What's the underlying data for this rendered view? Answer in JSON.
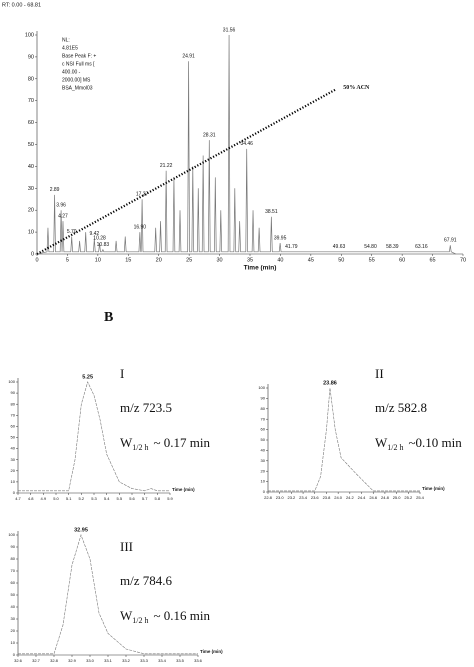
{
  "panel_label": "B",
  "chart_data": [
    {
      "type": "line",
      "range_text": "RT: 0.00 - 68.81",
      "info": [
        "NL:",
        "4.81E5",
        "Base Peak F: +",
        "c NSI Full ms [",
        "400.00 -",
        "2000.00]  MS",
        "BSA_Mmol03"
      ],
      "xlabel": "Time (min)",
      "xlim": [
        0,
        70
      ],
      "xticks": [
        0,
        5,
        10,
        15,
        20,
        25,
        30,
        35,
        40,
        45,
        50,
        55,
        60,
        65,
        70
      ],
      "ylim": [
        0,
        100
      ],
      "yticks": [
        0,
        10,
        20,
        30,
        40,
        50,
        60,
        70,
        80,
        90,
        100
      ],
      "color": "#777777",
      "x": [
        0,
        1.65,
        1.8,
        1.95,
        2.74,
        2.89,
        3.04,
        3.81,
        3.96,
        4.11,
        4.12,
        4.27,
        4.42,
        5.55,
        5.7,
        5.85,
        6.85,
        7,
        7.15,
        7.85,
        8,
        8.15,
        9.27,
        9.42,
        9.57,
        10.13,
        10.28,
        10.43,
        10.68,
        10.83,
        10.98,
        12.85,
        13,
        13.15,
        14.35,
        14.5,
        14.65,
        16.75,
        16.9,
        17.05,
        17.12,
        17.27,
        17.42,
        19.35,
        19.5,
        19.65,
        20.15,
        20.3,
        20.45,
        21.07,
        21.22,
        21.37,
        22.35,
        22.5,
        22.65,
        23.35,
        23.5,
        23.65,
        24.76,
        24.91,
        25.06,
        25.45,
        25.6,
        25.75,
        26.35,
        26.5,
        26.65,
        27.15,
        27.3,
        27.45,
        28.16,
        28.31,
        28.46,
        29.15,
        29.3,
        29.45,
        30.05,
        30.2,
        30.35,
        31.41,
        31.56,
        31.71,
        32.35,
        32.5,
        32.65,
        33.15,
        33.3,
        33.45,
        34.31,
        34.46,
        34.61,
        35.35,
        35.5,
        35.65,
        36.35,
        36.5,
        36.65,
        38.36,
        38.51,
        38.66,
        39.8,
        39.95,
        40.1,
        41.64,
        41.79,
        41.94,
        49.48,
        49.63,
        49.78,
        54.65,
        54.8,
        54.95,
        58.24,
        58.39,
        58.54,
        63.01,
        63.16,
        63.31,
        67.76,
        67.91,
        68.06,
        68.81
      ],
      "values": [
        0,
        1,
        12,
        1,
        1,
        27,
        1,
        1,
        20,
        1,
        1,
        15,
        1,
        1,
        8,
        1,
        1,
        6,
        1,
        1,
        10,
        1,
        1,
        7,
        1,
        1,
        5,
        1,
        1,
        2,
        1,
        1,
        6,
        1,
        1,
        8,
        1,
        1,
        10,
        1,
        1,
        25,
        1,
        1,
        12,
        1,
        1,
        15,
        1,
        1,
        38,
        1,
        1,
        35,
        1,
        1,
        20,
        1,
        1,
        88,
        1,
        1,
        40,
        1,
        1,
        30,
        1,
        1,
        45,
        1,
        1,
        52,
        1,
        1,
        35,
        1,
        1,
        20,
        1,
        1,
        100,
        1,
        1,
        30,
        1,
        1,
        15,
        1,
        1,
        48,
        1,
        1,
        20,
        1,
        1,
        12,
        1,
        1,
        17,
        1,
        1,
        5,
        1,
        1,
        1,
        1,
        1,
        1,
        1,
        1,
        1,
        1,
        1,
        1,
        1,
        1,
        1,
        1,
        1,
        4,
        1,
        0
      ],
      "peak_labels": [
        {
          "label": "2.89",
          "x": 2.89,
          "y": 27
        },
        {
          "label": "3.96",
          "x": 3.96,
          "y": 20
        },
        {
          "label": "4.27",
          "x": 4.27,
          "y": 15
        },
        {
          "label": "5.70",
          "x": 5.7,
          "y": 8
        },
        {
          "label": "9.42",
          "x": 9.42,
          "y": 7
        },
        {
          "label": "10.28",
          "x": 10.28,
          "y": 5
        },
        {
          "label": "10.83",
          "x": 10.83,
          "y": 2
        },
        {
          "label": "16.90",
          "x": 16.9,
          "y": 10
        },
        {
          "label": "17.27",
          "x": 17.27,
          "y": 25
        },
        {
          "label": "21.22",
          "x": 21.22,
          "y": 38
        },
        {
          "label": "24.91",
          "x": 24.91,
          "y": 88
        },
        {
          "label": "28.31",
          "x": 28.31,
          "y": 52
        },
        {
          "label": "31.56",
          "x": 31.56,
          "y": 100
        },
        {
          "label": "34.46",
          "x": 34.46,
          "y": 48
        },
        {
          "label": "38.51",
          "x": 38.51,
          "y": 17
        },
        {
          "label": "39.95",
          "x": 39.95,
          "y": 5
        },
        {
          "label": "41.79",
          "x": 41.79,
          "y": 1
        },
        {
          "label": "49.63",
          "x": 49.63,
          "y": 1
        },
        {
          "label": "54.80",
          "x": 54.8,
          "y": 1
        },
        {
          "label": "58.39",
          "x": 58.39,
          "y": 1
        },
        {
          "label": "63.16",
          "x": 63.16,
          "y": 1
        },
        {
          "label": "67.91",
          "x": 67.91,
          "y": 4
        }
      ],
      "gradient": {
        "label": "50%   ACN",
        "x": [
          0,
          49
        ],
        "values": [
          0,
          75
        ]
      }
    },
    {
      "type": "line",
      "title": "I",
      "mz": "m/z 723.5",
      "width_symbol": "W",
      "width_sub": "1/2 h",
      "width_value": "~ 0.17 min",
      "xlabel": "Time (min)",
      "color": "#777777",
      "xlim": [
        4.7,
        5.9
      ],
      "xticks": [
        4.7,
        4.8,
        4.9,
        {
          "value": 5.0,
          "label": "5.0"
        },
        5.1,
        5.2,
        5.3,
        5.4,
        5.5,
        5.6,
        5.7,
        5.8,
        5.9
      ],
      "ylim": [
        0,
        100
      ],
      "yticks": [
        0,
        10,
        20,
        30,
        40,
        50,
        60,
        70,
        80,
        90,
        100
      ],
      "x": [
        4.7,
        5.0,
        5.1,
        5.15,
        5.2,
        5.25,
        5.3,
        5.35,
        5.4,
        5.5,
        5.6,
        5.7,
        5.75,
        5.8,
        5.9
      ],
      "values": [
        2,
        2,
        2,
        30,
        80,
        100,
        88,
        65,
        35,
        10,
        4,
        2,
        4,
        2,
        2
      ],
      "peak_labels": [
        {
          "label": "5.25",
          "x": 5.25,
          "y": 100
        }
      ]
    },
    {
      "type": "line",
      "title": "II",
      "mz": "m/z 582.8",
      "width_symbol": "W",
      "width_sub": "1/2 h",
      "width_value": "~0.10 min",
      "xlabel": "Time (min)",
      "color": "#777777",
      "xlim": [
        22.8,
        25.4
      ],
      "xticks": [
        22.8,
        {
          "value": 23.0,
          "label": "23.0"
        },
        23.2,
        23.4,
        23.6,
        23.8,
        {
          "value": 24.0,
          "label": "24.0"
        },
        24.2,
        24.4,
        24.6,
        24.8,
        {
          "value": 25.0,
          "label": "25.0"
        },
        25.2,
        25.4
      ],
      "ylim": [
        0,
        100
      ],
      "yticks": [
        0,
        10,
        20,
        30,
        40,
        50,
        60,
        70,
        80,
        90,
        100
      ],
      "x": [
        22.8,
        23.4,
        23.6,
        23.7,
        23.8,
        23.86,
        23.95,
        24.05,
        24.3,
        24.6,
        25.4
      ],
      "values": [
        1,
        1,
        1,
        15,
        60,
        100,
        60,
        33,
        18,
        1,
        1
      ],
      "peak_labels": [
        {
          "label": "23.86",
          "x": 23.86,
          "y": 100
        }
      ]
    },
    {
      "type": "line",
      "title": "III",
      "mz": "m/z 784.6",
      "width_symbol": "W",
      "width_sub": "1/2 h",
      "width_value": "~ 0.16 min",
      "xlabel": "Time (min)",
      "color": "#777777",
      "xlim": [
        32.6,
        33.6
      ],
      "xticks": [
        32.6,
        32.7,
        32.8,
        32.9,
        {
          "value": 33.0,
          "label": "33.0"
        },
        33.1,
        33.2,
        33.3,
        33.4,
        33.5,
        33.6
      ],
      "ylim": [
        0,
        100
      ],
      "yticks": [
        0,
        10,
        20,
        30,
        40,
        50,
        60,
        70,
        80,
        90,
        100
      ],
      "x": [
        32.6,
        32.8,
        32.85,
        32.9,
        32.95,
        33.0,
        33.05,
        33.1,
        33.2,
        33.3,
        33.6
      ],
      "values": [
        1,
        1,
        25,
        75,
        100,
        80,
        35,
        18,
        5,
        1,
        1
      ],
      "peak_labels": [
        {
          "label": "32.95",
          "x": 32.95,
          "y": 100
        }
      ]
    }
  ]
}
